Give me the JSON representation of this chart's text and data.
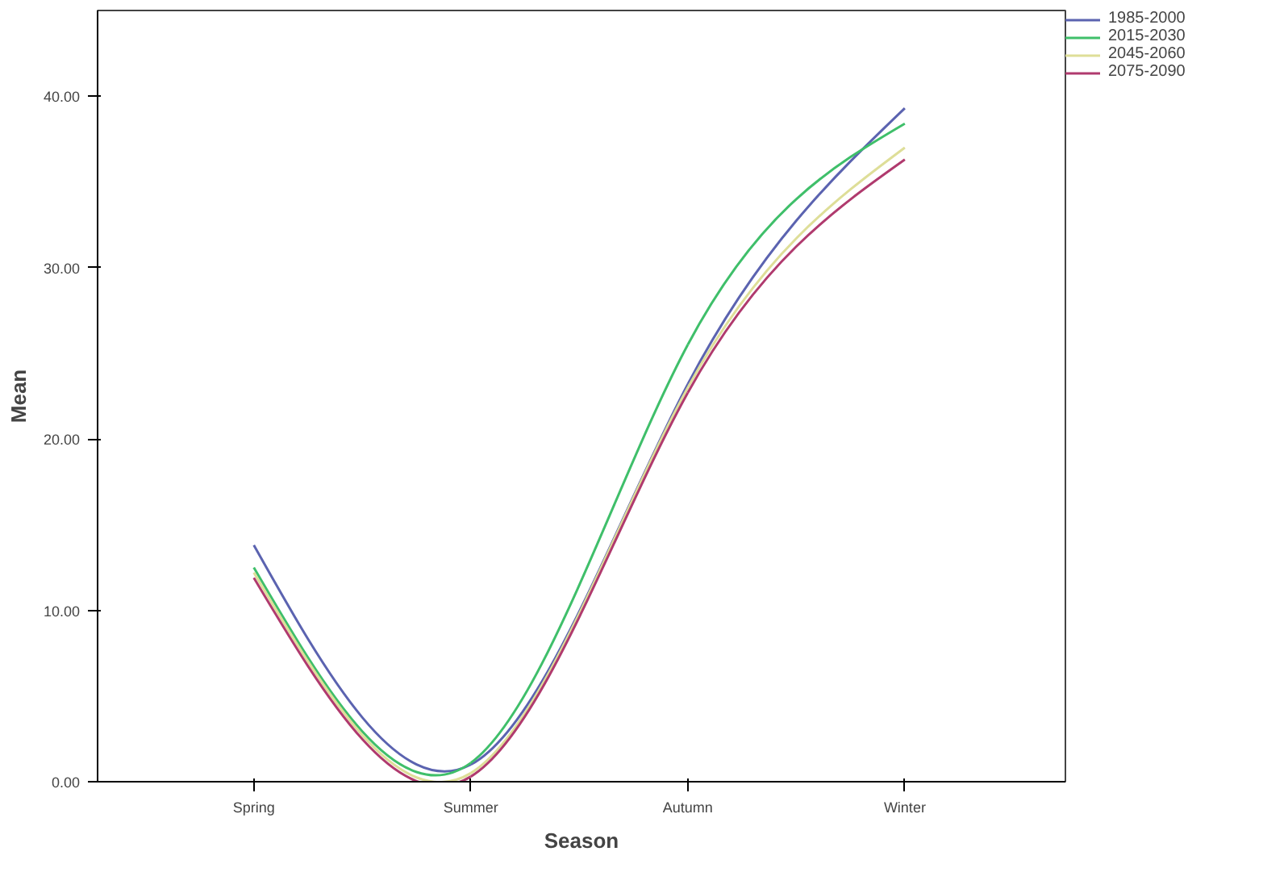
{
  "chart_data": {
    "type": "line",
    "xlabel": "Season",
    "ylabel": "Mean",
    "categories": [
      "Spring",
      "Summer",
      "Autumn",
      "Winter"
    ],
    "series": [
      {
        "name": "1985-2000",
        "color": "#5b63b0",
        "values": [
          13.8,
          1.0,
          23.2,
          39.3
        ]
      },
      {
        "name": "2015-2030",
        "color": "#3fbf6a",
        "values": [
          12.5,
          1.1,
          25.5,
          38.4
        ]
      },
      {
        "name": "2045-2060",
        "color": "#dede98",
        "values": [
          12.2,
          0.5,
          23.0,
          37.0
        ]
      },
      {
        "name": "2075-2090",
        "color": "#b03a6e",
        "values": [
          11.9,
          0.3,
          22.7,
          36.3
        ]
      }
    ],
    "ylim": [
      0,
      45
    ],
    "yticks": [
      {
        "value": 0,
        "label": "0.00"
      },
      {
        "value": 10,
        "label": "10.00"
      },
      {
        "value": 20,
        "label": "20.00"
      },
      {
        "value": 30,
        "label": "30.00"
      },
      {
        "value": 40,
        "label": "40.00"
      }
    ],
    "grid": false,
    "legend": "top right",
    "marker": "none",
    "line_style": "solid"
  }
}
